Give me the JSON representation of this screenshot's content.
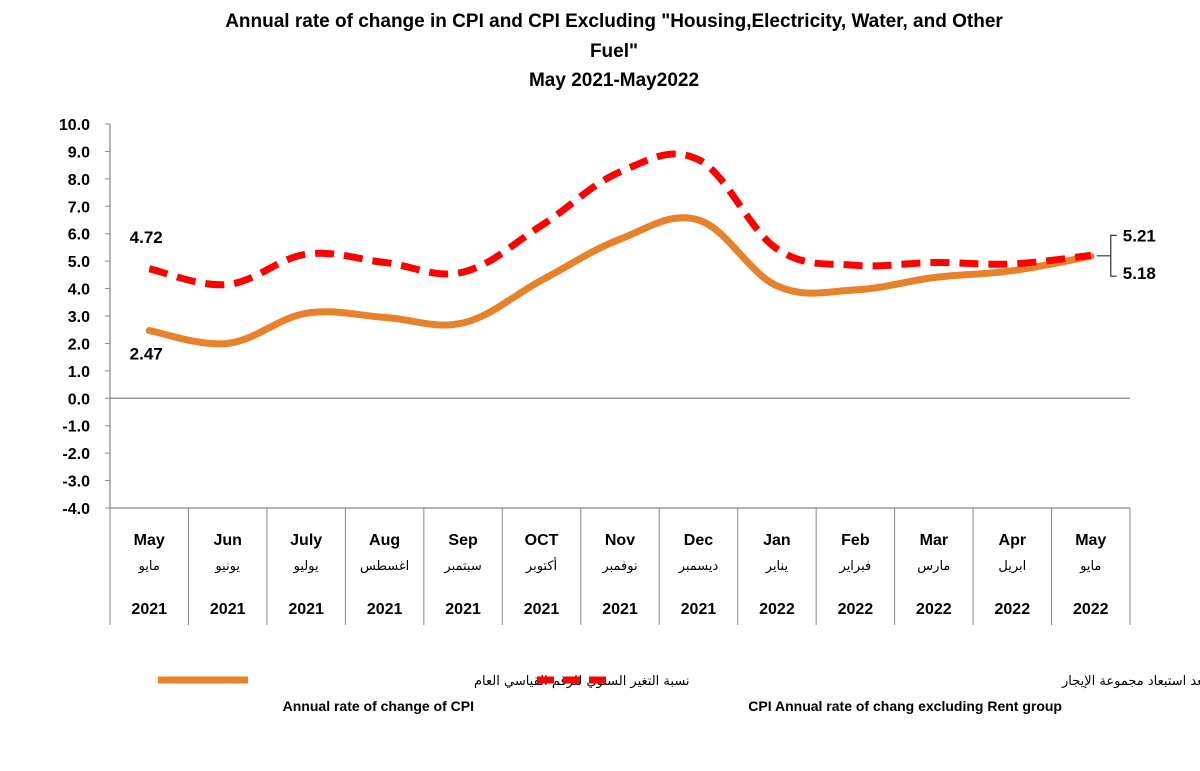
{
  "chart_data": {
    "type": "line",
    "title_lines": [
      "Annual rate of change in CPI  and  CPI  Excluding \"Housing,Electricity, Water, and Other",
      "Fuel\"",
      "May 2021-May2022"
    ],
    "xlabel": "",
    "ylabel": "",
    "ylim": [
      -4.0,
      10.0
    ],
    "y_ticks": [
      "10.0",
      "9.0",
      "8.0",
      "7.0",
      "6.0",
      "5.0",
      "4.0",
      "3.0",
      "2.0",
      "1.0",
      "0.0",
      "-1.0",
      "-2.0",
      "-3.0",
      "-4.0"
    ],
    "grid": false,
    "legend_position": "bottom",
    "categories": [
      {
        "en": "May",
        "ar": "مايو",
        "year": "2021"
      },
      {
        "en": "Jun",
        "ar": "يونيو",
        "year": "2021"
      },
      {
        "en": "July",
        "ar": "يوليو",
        "year": "2021"
      },
      {
        "en": "Aug",
        "ar": "اغسطس",
        "year": "2021"
      },
      {
        "en": "Sep",
        "ar": "سبتمبر",
        "year": "2021"
      },
      {
        "en": "OCT",
        "ar": "أكتوبر",
        "year": "2021"
      },
      {
        "en": "Nov",
        "ar": "نوفمبر",
        "year": "2021"
      },
      {
        "en": "Dec",
        "ar": "ديسمبر",
        "year": "2021"
      },
      {
        "en": "Jan",
        "ar": "يناير",
        "year": "2022"
      },
      {
        "en": "Feb",
        "ar": "فبراير",
        "year": "2022"
      },
      {
        "en": "Mar",
        "ar": "مارس",
        "year": "2022"
      },
      {
        "en": "Apr",
        "ar": "ابريل",
        "year": "2022"
      },
      {
        "en": "May",
        "ar": "مايو",
        "year": "2022"
      }
    ],
    "series": [
      {
        "name_ar": "نسبة التغير السنوي للرقم القياسي  العام",
        "name_en": "Annual rate of change of CPI",
        "color": "#E8822A",
        "style": "solid",
        "values": [
          2.47,
          2.0,
          3.1,
          2.95,
          2.75,
          4.3,
          5.8,
          6.5,
          4.1,
          3.95,
          4.4,
          4.65,
          5.18
        ]
      },
      {
        "name_ar": "نسب التغير السنوي في الرقم القياسي العام بعد استبعاد مجموعة الإيجار",
        "name_en": "CPI Annual rate of chang excluding Rent group",
        "color": "#FF0000",
        "style": "dashed",
        "values": [
          4.72,
          4.15,
          5.25,
          4.95,
          4.6,
          6.3,
          8.25,
          8.7,
          5.45,
          4.85,
          4.95,
          4.9,
          5.21
        ]
      }
    ],
    "annotations": [
      {
        "text": "4.72",
        "series": 1,
        "index": 0
      },
      {
        "text": "2.47",
        "series": 0,
        "index": 0
      },
      {
        "text": "5.21",
        "series": 1,
        "index": 12
      },
      {
        "text": "5.18",
        "series": 0,
        "index": 12
      }
    ]
  }
}
